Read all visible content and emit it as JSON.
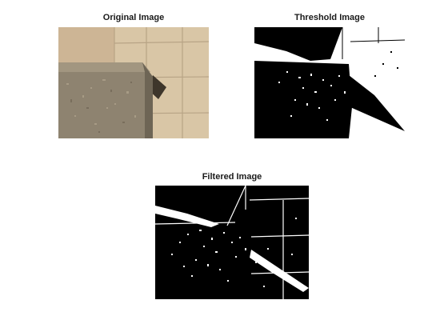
{
  "figure": {
    "panels": [
      {
        "id": "original",
        "title": "Original Image",
        "colors": {
          "wall": "#d7c3a3",
          "tile_line": "#b9a587",
          "block_light": "#9a8e78",
          "block_dark": "#6f6656",
          "shadow": "#3a342b"
        }
      },
      {
        "id": "threshold",
        "title": "Threshold Image",
        "colors": {
          "fg": "#ffffff",
          "bg": "#000000"
        }
      },
      {
        "id": "filtered",
        "title": "Filtered Image",
        "colors": {
          "fg": "#ffffff",
          "bg": "#000000"
        }
      }
    ]
  }
}
